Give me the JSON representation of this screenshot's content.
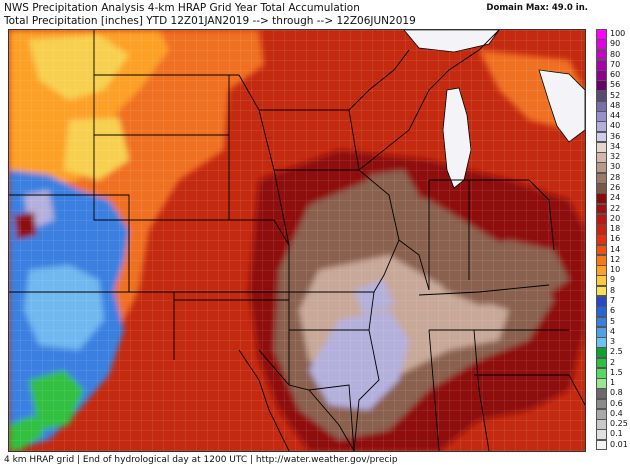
{
  "header": {
    "line1": "NWS Precipitation Analysis 4-km HRAP Grid Year Total Accumulation",
    "line2": "Total Precipitation [inches] YTD 12Z01JAN2019 --> through --> 12Z06JUN2019",
    "domain_max": "Domain Max: 49.0 in."
  },
  "footer": {
    "text": "4 km HRAP grid | End of hydrological day at 1200 UTC | http://water.weather.gov/precip"
  },
  "legend": {
    "items": [
      {
        "label": "100",
        "color": "#ff00ff"
      },
      {
        "label": "90",
        "color": "#e000e0"
      },
      {
        "label": "80",
        "color": "#c800c8"
      },
      {
        "label": "70",
        "color": "#aa00aa"
      },
      {
        "label": "60",
        "color": "#8e008e"
      },
      {
        "label": "56",
        "color": "#6a006a"
      },
      {
        "label": "52",
        "color": "#5a4a78"
      },
      {
        "label": "48",
        "color": "#7a6ea8"
      },
      {
        "label": "44",
        "color": "#9890c8"
      },
      {
        "label": "40",
        "color": "#b4aedc"
      },
      {
        "label": "36",
        "color": "#d2ccec"
      },
      {
        "label": "34",
        "color": "#e6d6d0"
      },
      {
        "label": "32",
        "color": "#d2b8aa"
      },
      {
        "label": "30",
        "color": "#b89888"
      },
      {
        "label": "28",
        "color": "#9a7868"
      },
      {
        "label": "26",
        "color": "#7a5848"
      },
      {
        "label": "24",
        "color": "#8a0a0a"
      },
      {
        "label": "22",
        "color": "#a01010"
      },
      {
        "label": "20",
        "color": "#b81818"
      },
      {
        "label": "18",
        "color": "#d02010"
      },
      {
        "label": "16",
        "color": "#e83010"
      },
      {
        "label": "14",
        "color": "#f05010"
      },
      {
        "label": "12",
        "color": "#f87818"
      },
      {
        "label": "10",
        "color": "#fca028"
      },
      {
        "label": "9",
        "color": "#fcc840"
      },
      {
        "label": "8",
        "color": "#f8e058"
      },
      {
        "label": "7",
        "color": "#2848c8"
      },
      {
        "label": "6",
        "color": "#2864d8"
      },
      {
        "label": "5",
        "color": "#3880e0"
      },
      {
        "label": "4",
        "color": "#50a0e8"
      },
      {
        "label": "3",
        "color": "#70c0f0"
      },
      {
        "label": "2.5",
        "color": "#10a030"
      },
      {
        "label": "2",
        "color": "#30c040"
      },
      {
        "label": "1.5",
        "color": "#58d860"
      },
      {
        "label": "1",
        "color": "#98e890"
      },
      {
        "label": "0.8",
        "color": "#6a6a6a"
      },
      {
        "label": "0.6",
        "color": "#8a8a8a"
      },
      {
        "label": "0.4",
        "color": "#a8a8a8"
      },
      {
        "label": "0.25",
        "color": "#c8c8c8"
      },
      {
        "label": "0.1",
        "color": "#e0e0e0"
      },
      {
        "label": "0.01",
        "color": "#f4f4f4"
      }
    ]
  },
  "colors": {
    "base": "#c42a10",
    "orange": "#f07020",
    "light_orange": "#fca028",
    "yellow": "#f8d050",
    "blue": "#3a80e0",
    "light_blue": "#70b8f0",
    "green": "#30c040",
    "dark_red": "#8e0c0c",
    "brown": "#8a6050",
    "tan": "#c8a898",
    "lavender": "#b4b0dc",
    "lake": "#f4f4f8",
    "border": "#000000"
  }
}
